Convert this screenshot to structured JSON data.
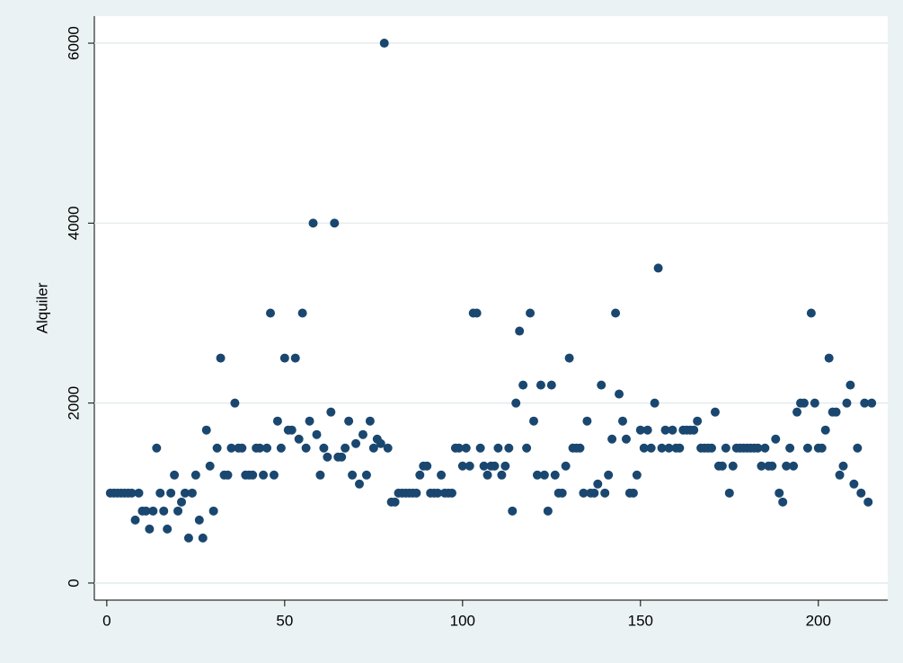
{
  "chart_data": {
    "type": "scatter",
    "y_label": "Alquiler",
    "color": "#1a476f",
    "grid": true,
    "xlim": [
      -3.5,
      219.5
    ],
    "ylim": [
      -190,
      6300
    ],
    "xticks": [
      0,
      50,
      100,
      150,
      200
    ],
    "yticks": [
      0,
      2000,
      4000,
      6000
    ],
    "series": [
      {
        "name": "Alquiler",
        "color": "#1a476f",
        "x": [
          1,
          2,
          3,
          4,
          5,
          6,
          7,
          8,
          9,
          10,
          11,
          12,
          13,
          14,
          15,
          16,
          17,
          18,
          19,
          20,
          21,
          22,
          23,
          24,
          25,
          26,
          27,
          28,
          29,
          30,
          31,
          32,
          33,
          34,
          35,
          36,
          37,
          38,
          39,
          40,
          41,
          42,
          43,
          44,
          45,
          46,
          47,
          48,
          49,
          50,
          51,
          52,
          53,
          54,
          55,
          56,
          57,
          58,
          59,
          60,
          61,
          62,
          63,
          64,
          65,
          66,
          67,
          68,
          69,
          70,
          71,
          72,
          73,
          74,
          75,
          76,
          77,
          78,
          79,
          80,
          81,
          82,
          83,
          84,
          85,
          86,
          87,
          88,
          89,
          90,
          91,
          92,
          93,
          94,
          95,
          96,
          97,
          98,
          99,
          100,
          101,
          102,
          103,
          104,
          105,
          106,
          107,
          108,
          109,
          110,
          111,
          112,
          113,
          114,
          115,
          116,
          117,
          118,
          119,
          120,
          121,
          122,
          123,
          124,
          125,
          126,
          127,
          128,
          129,
          130,
          131,
          132,
          133,
          134,
          135,
          136,
          137,
          138,
          139,
          140,
          141,
          142,
          143,
          144,
          145,
          146,
          147,
          148,
          149,
          150,
          151,
          152,
          153,
          154,
          155,
          156,
          157,
          158,
          159,
          160,
          161,
          162,
          163,
          164,
          165,
          166,
          167,
          168,
          169,
          170,
          171,
          172,
          173,
          174,
          175,
          176,
          177,
          178,
          179,
          180,
          181,
          182,
          183,
          184,
          185,
          186,
          187,
          188,
          189,
          190,
          191,
          192,
          193,
          194,
          195,
          196,
          197,
          198,
          199,
          200,
          201,
          202,
          203,
          204,
          205,
          206,
          207,
          208,
          209,
          210,
          211,
          212,
          213,
          214,
          215
        ],
        "values": [
          1000,
          1000,
          1000,
          1000,
          1000,
          1000,
          1000,
          700,
          1000,
          800,
          800,
          600,
          800,
          1500,
          1000,
          800,
          600,
          1000,
          1200,
          800,
          900,
          1000,
          500,
          1000,
          1200,
          700,
          500,
          1700,
          1300,
          800,
          1500,
          2500,
          1200,
          1200,
          1500,
          2000,
          1500,
          1500,
          1200,
          1200,
          1200,
          1500,
          1500,
          1200,
          1500,
          3000,
          1200,
          1800,
          1500,
          2500,
          1700,
          1700,
          2500,
          1600,
          3000,
          1500,
          1800,
          4000,
          1650,
          1200,
          1500,
          1400,
          1900,
          4000,
          1400,
          1400,
          1500,
          1800,
          1200,
          1550,
          1100,
          1650,
          1200,
          1800,
          1500,
          1600,
          1550,
          6000,
          1500,
          900,
          900,
          1000,
          1000,
          1000,
          1000,
          1000,
          1000,
          1200,
          1300,
          1300,
          1000,
          1000,
          1000,
          1200,
          1000,
          1000,
          1000,
          1500,
          1500,
          1300,
          1500,
          1300,
          3000,
          3000,
          1500,
          1300,
          1200,
          1300,
          1300,
          1500,
          1200,
          1300,
          1500,
          800,
          2000,
          2800,
          2200,
          1500,
          3000,
          1800,
          1200,
          2200,
          1200,
          800,
          2200,
          1200,
          1000,
          1000,
          1300,
          2500,
          1500,
          1500,
          1500,
          1000,
          1800,
          1000,
          1000,
          1100,
          2200,
          1000,
          1200,
          1600,
          3000,
          2100,
          1800,
          1600,
          1000,
          1000,
          1200,
          1700,
          1500,
          1700,
          1500,
          2000,
          3500,
          1500,
          1700,
          1500,
          1700,
          1500,
          1500,
          1700,
          1700,
          1700,
          1700,
          1800,
          1500,
          1500,
          1500,
          1500,
          1900,
          1300,
          1300,
          1500,
          1000,
          1300,
          1500,
          1500,
          1500,
          1500,
          1500,
          1500,
          1500,
          1300,
          1500,
          1300,
          1300,
          1600,
          1000,
          900,
          1300,
          1500,
          1300,
          1900,
          2000,
          2000,
          1500,
          3000,
          2000,
          1500,
          1500,
          1700,
          2500,
          1900,
          1900,
          1200,
          1300,
          2000,
          2200,
          1100,
          1500,
          1000,
          2000,
          900,
          2000
        ]
      }
    ]
  }
}
